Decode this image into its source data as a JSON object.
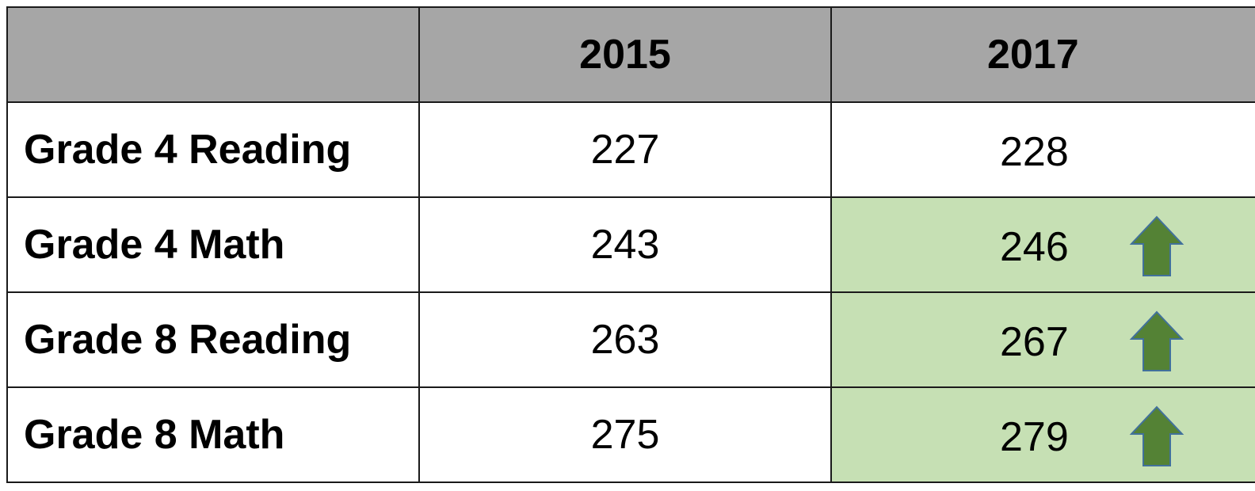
{
  "table": {
    "header": [
      "2015",
      "2017"
    ],
    "rows": [
      [
        "Grade 4 Reading",
        227,
        228
      ],
      [
        "Grade 4 Math",
        243,
        246
      ],
      [
        "Grade 8 Reading",
        263,
        267
      ],
      [
        "Grade 8 Math",
        275,
        279
      ]
    ]
  }
}
